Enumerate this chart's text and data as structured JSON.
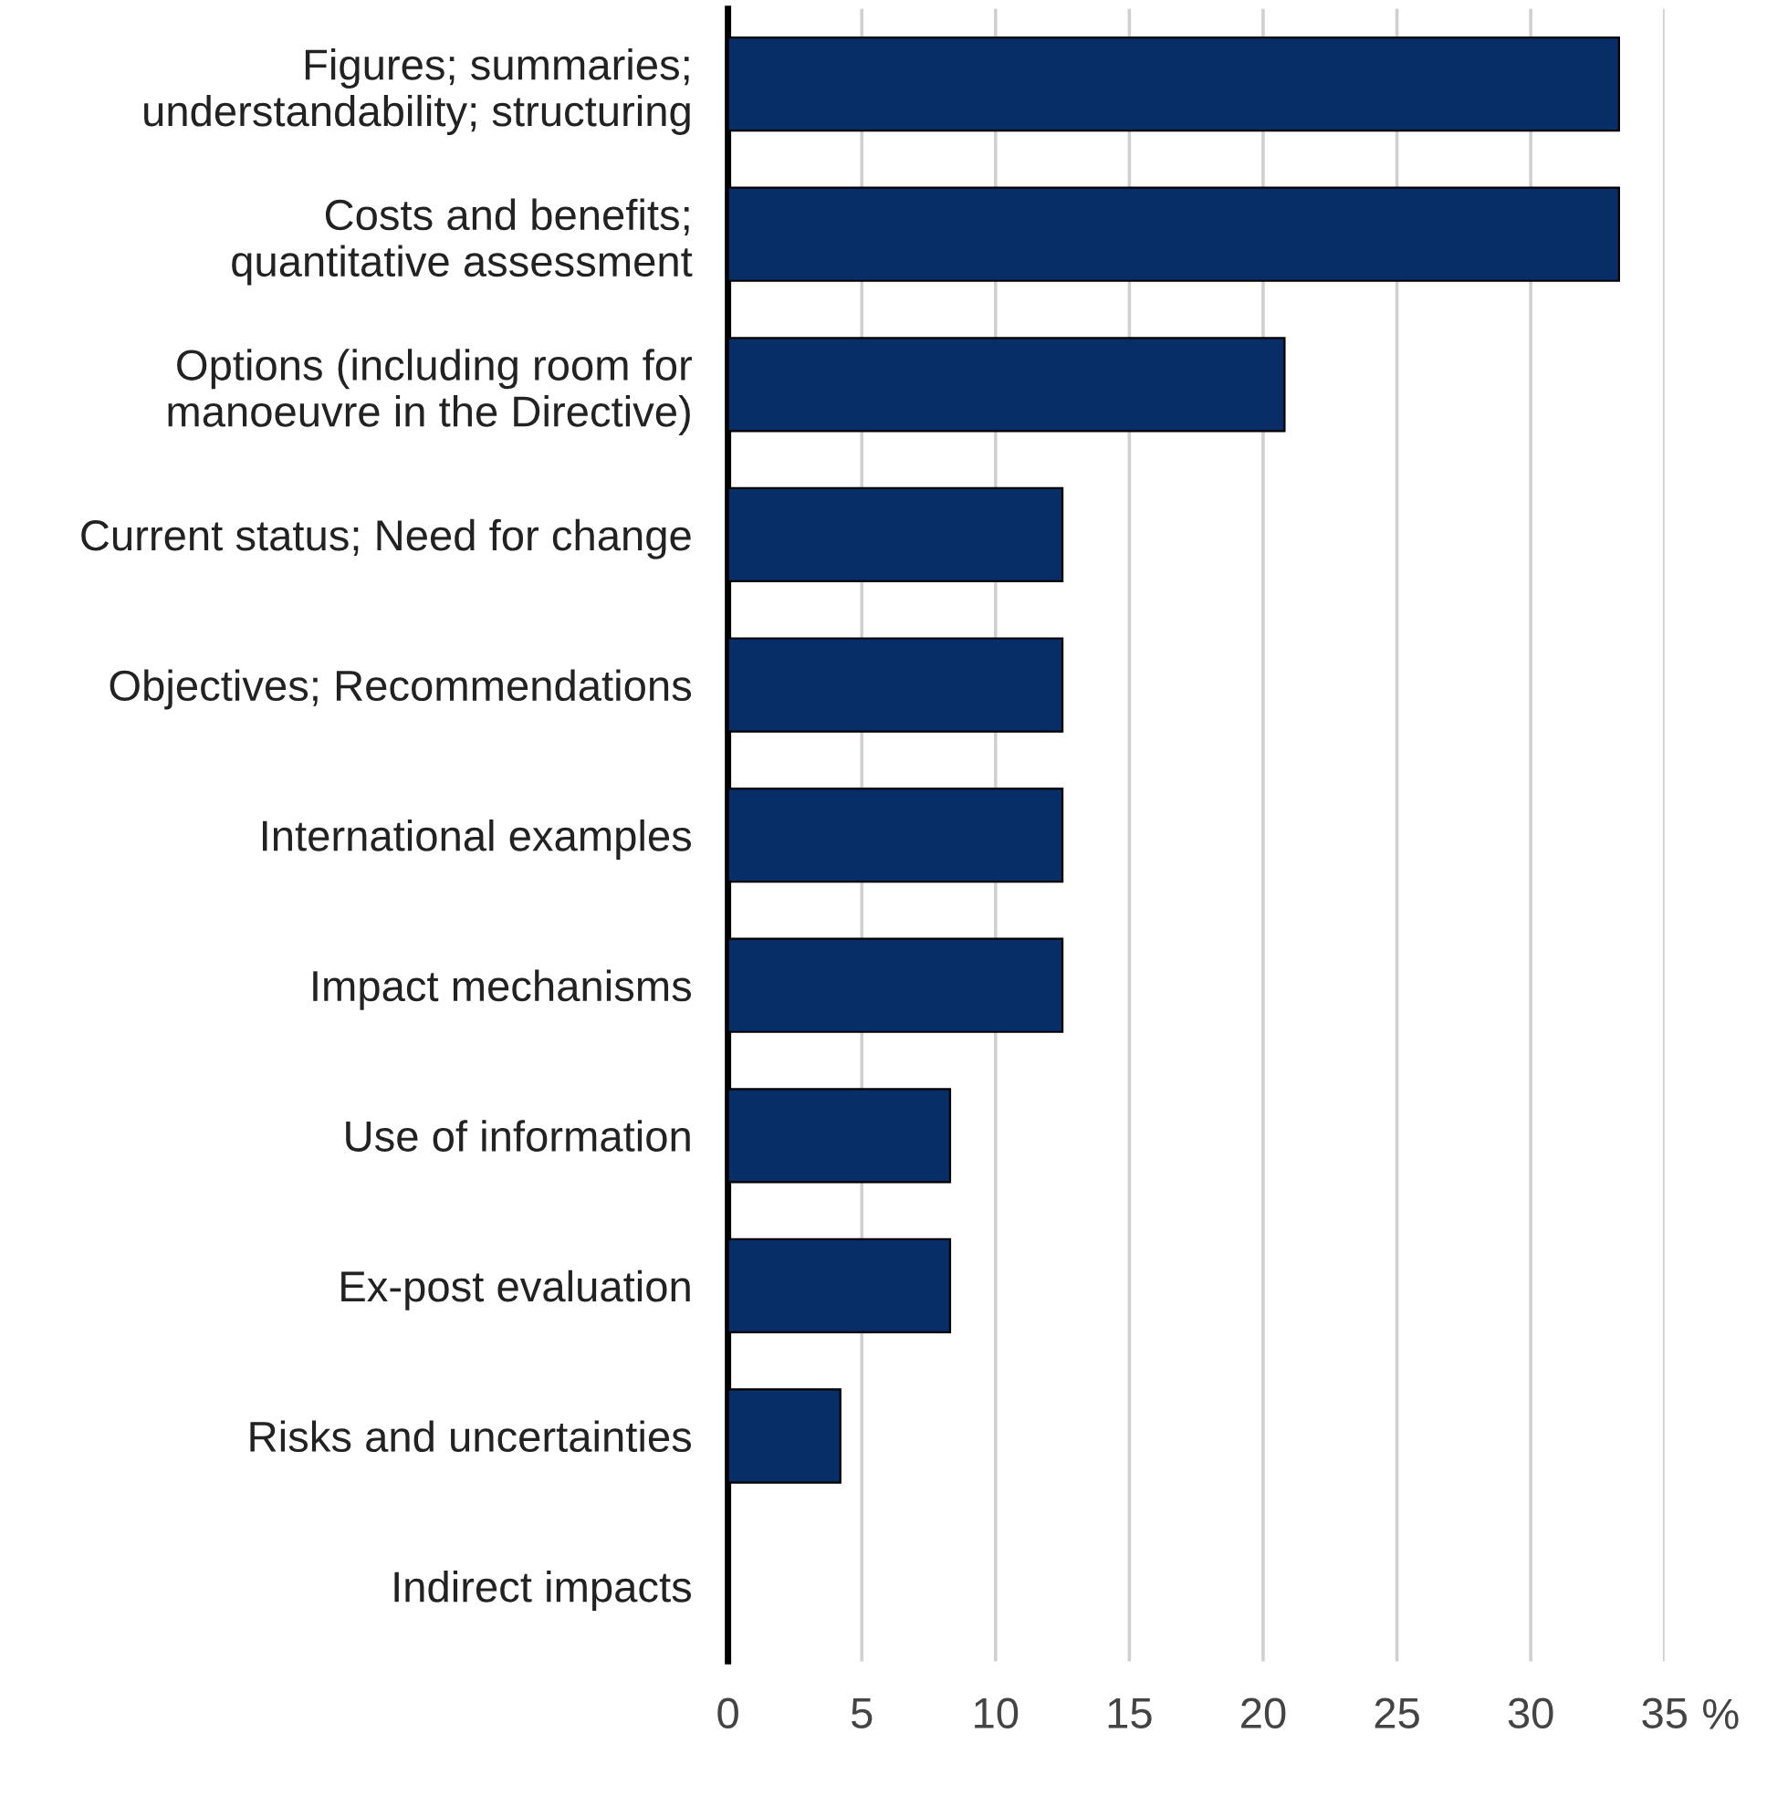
{
  "chart_data": {
    "type": "bar",
    "orientation": "horizontal",
    "xlabel": "%",
    "categories": [
      "Figures; summaries;\nunderstandability; structuring",
      "Costs and benefits;\nquantitative assessment",
      "Options (including room for\nmanoeuvre in the Directive)",
      "Current status; Need for change",
      "Objectives; Recommendations",
      "International examples",
      "Impact mechanisms",
      "Use of information",
      "Ex-post evaluation",
      "Risks and uncertainties",
      "Indirect impacts"
    ],
    "values": [
      33.3,
      33.3,
      20.8,
      12.5,
      12.5,
      12.5,
      12.5,
      8.3,
      8.3,
      4.2,
      0
    ],
    "color": "#072e66",
    "xlim": [
      0,
      35
    ],
    "xticks": [
      0,
      5,
      10,
      15,
      20,
      25,
      30,
      35
    ],
    "grid": "x",
    "legend": false
  }
}
